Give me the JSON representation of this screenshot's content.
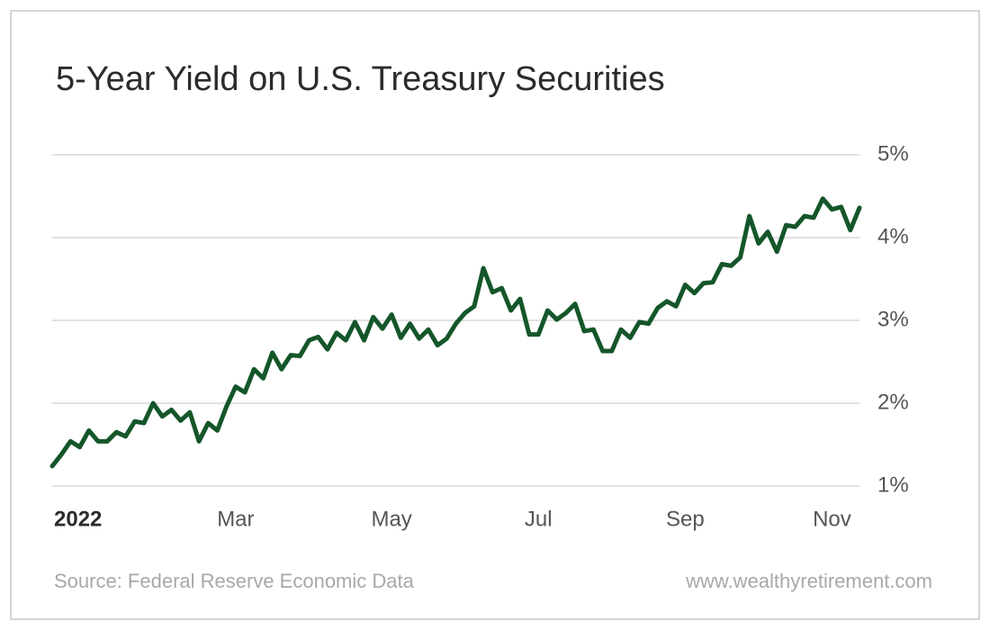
{
  "chart_data": {
    "type": "line",
    "title": "5-Year Yield on U.S. Treasury Securities",
    "source": "Source: Federal Reserve Economic Data",
    "credit": "www.wealthyretirement.com",
    "categories": [
      "2022",
      null,
      null,
      null,
      null,
      null,
      null,
      null,
      null,
      null,
      null,
      null,
      null,
      null,
      null,
      null,
      null,
      null,
      null,
      null,
      "Mar",
      null,
      null,
      null,
      null,
      null,
      null,
      null,
      null,
      null,
      null,
      null,
      null,
      null,
      null,
      null,
      null,
      "May",
      null,
      null,
      null,
      null,
      null,
      null,
      null,
      null,
      null,
      null,
      null,
      null,
      null,
      null,
      null,
      "Jul",
      null,
      null,
      null,
      null,
      null,
      null,
      null,
      null,
      null,
      null,
      null,
      null,
      null,
      null,
      null,
      "Sep",
      null,
      null,
      null,
      null,
      null,
      null,
      null,
      null,
      null,
      null,
      null,
      null,
      null,
      null,
      null,
      "Nov",
      null,
      null,
      null
    ],
    "values": [
      1.24,
      1.38,
      1.54,
      1.47,
      1.67,
      1.54,
      1.54,
      1.65,
      1.6,
      1.78,
      1.76,
      2.0,
      1.84,
      1.92,
      1.79,
      1.89,
      1.54,
      1.76,
      1.67,
      1.96,
      2.2,
      2.13,
      2.41,
      2.3,
      2.61,
      2.41,
      2.58,
      2.57,
      2.76,
      2.8,
      2.65,
      2.85,
      2.76,
      2.98,
      2.76,
      3.04,
      2.9,
      3.07,
      2.79,
      2.96,
      2.78,
      2.89,
      2.7,
      2.78,
      2.96,
      3.09,
      3.17,
      3.63,
      3.34,
      3.39,
      3.12,
      3.26,
      2.83,
      2.83,
      3.12,
      3.01,
      3.09,
      3.2,
      2.87,
      2.89,
      2.63,
      2.63,
      2.89,
      2.79,
      2.98,
      2.96,
      3.15,
      3.23,
      3.17,
      3.43,
      3.33,
      3.45,
      3.46,
      3.68,
      3.66,
      3.76,
      4.26,
      3.93,
      4.07,
      3.83,
      4.15,
      4.13,
      4.26,
      4.24,
      4.47,
      4.34,
      4.37,
      4.09,
      4.36
    ],
    "color": "#14562a",
    "ylim": [
      1,
      5
    ],
    "yticks": [
      {
        "value": 1,
        "label": "1%"
      },
      {
        "value": 2,
        "label": "2%"
      },
      {
        "value": 3,
        "label": "3%"
      },
      {
        "value": 4,
        "label": "4%"
      },
      {
        "value": 5,
        "label": "5%"
      }
    ],
    "grid": true
  }
}
